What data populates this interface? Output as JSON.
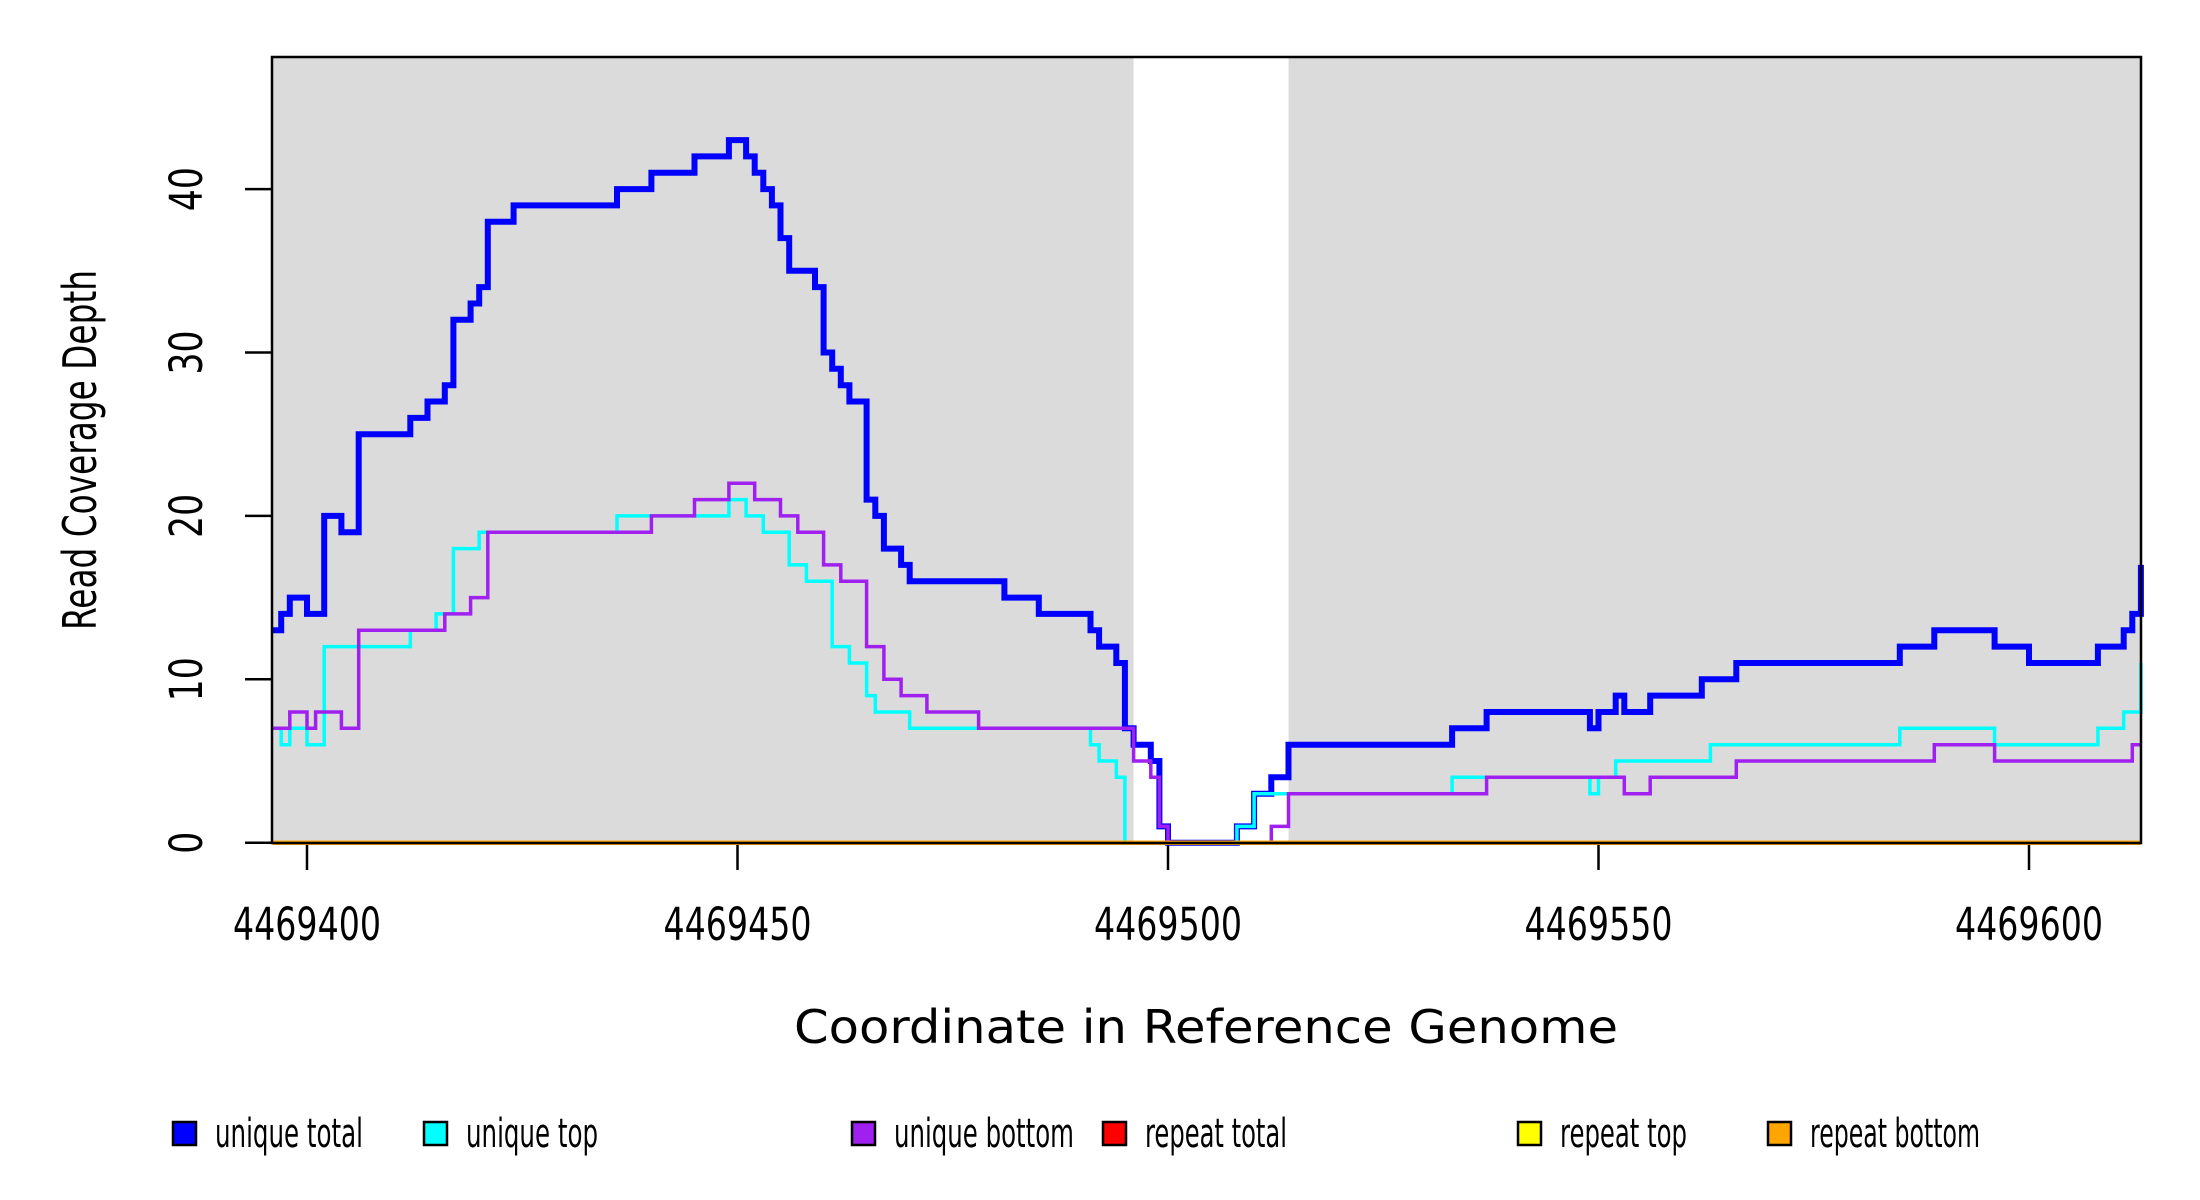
{
  "chart_data": {
    "type": "line",
    "subtype": "step-coverage",
    "title": "",
    "xlabel": "Coordinate in Reference Genome",
    "ylabel": "Read Coverage Depth",
    "xlim": [
      4469396,
      4469613
    ],
    "ylim": [
      0,
      48
    ],
    "x_ticks": [
      4469400,
      4469450,
      4469500,
      4469550,
      4469600
    ],
    "y_ticks": [
      0,
      10,
      20,
      30,
      40
    ],
    "grid": false,
    "legend_position": "bottom-horizontal",
    "plot_background_color": "#ffffff",
    "shaded_background_color": "#dbdbdb",
    "shaded_regions": [
      [
        4469396,
        4469496
      ],
      [
        4469514,
        4469613
      ]
    ],
    "unshaded_gap_region": [
      4469496,
      4469514
    ],
    "axis_color": "#000000",
    "series": [
      {
        "name": "unique total",
        "color": "#0000ff",
        "line_width": 6,
        "points": [
          [
            4469396,
            13
          ],
          [
            4469397,
            14
          ],
          [
            4469398,
            15
          ],
          [
            4469400,
            14
          ],
          [
            4469402,
            20
          ],
          [
            4469404,
            19
          ],
          [
            4469406,
            25
          ],
          [
            4469412,
            26
          ],
          [
            4469414,
            27
          ],
          [
            4469416,
            28
          ],
          [
            4469417,
            32
          ],
          [
            4469419,
            33
          ],
          [
            4469420,
            34
          ],
          [
            4469421,
            38
          ],
          [
            4469424,
            39
          ],
          [
            4469436,
            40
          ],
          [
            4469440,
            41
          ],
          [
            4469445,
            42
          ],
          [
            4469449,
            43
          ],
          [
            4469451,
            42
          ],
          [
            4469452,
            41
          ],
          [
            4469453,
            40
          ],
          [
            4469454,
            39
          ],
          [
            4469455,
            37
          ],
          [
            4469456,
            35
          ],
          [
            4469459,
            34
          ],
          [
            4469460,
            30
          ],
          [
            4469461,
            29
          ],
          [
            4469462,
            28
          ],
          [
            4469463,
            27
          ],
          [
            4469465,
            21
          ],
          [
            4469466,
            20
          ],
          [
            4469467,
            18
          ],
          [
            4469469,
            17
          ],
          [
            4469470,
            16
          ],
          [
            4469481,
            15
          ],
          [
            4469485,
            14
          ],
          [
            4469491,
            13
          ],
          [
            4469492,
            12
          ],
          [
            4469494,
            11
          ],
          [
            4469495,
            7
          ],
          [
            4469496,
            6
          ],
          [
            4469498,
            5
          ],
          [
            4469499,
            1
          ],
          [
            4469500,
            0
          ],
          [
            4469508,
            1
          ],
          [
            4469510,
            3
          ],
          [
            4469512,
            4
          ],
          [
            4469514,
            6
          ],
          [
            4469533,
            7
          ],
          [
            4469537,
            8
          ],
          [
            4469549,
            7
          ],
          [
            4469550,
            8
          ],
          [
            4469552,
            9
          ],
          [
            4469553,
            8
          ],
          [
            4469556,
            9
          ],
          [
            4469562,
            10
          ],
          [
            4469566,
            11
          ],
          [
            4469585,
            12
          ],
          [
            4469589,
            13
          ],
          [
            4469596,
            12
          ],
          [
            4469600,
            11
          ],
          [
            4469608,
            12
          ],
          [
            4469611,
            13
          ],
          [
            4469612,
            14
          ],
          [
            4469613,
            17
          ]
        ]
      },
      {
        "name": "unique top",
        "color": "#00ffff",
        "line_width": 3.5,
        "points": [
          [
            4469396,
            7
          ],
          [
            4469397,
            6
          ],
          [
            4469398,
            7
          ],
          [
            4469400,
            6
          ],
          [
            4469402,
            12
          ],
          [
            4469412,
            13
          ],
          [
            4469415,
            14
          ],
          [
            4469417,
            18
          ],
          [
            4469420,
            19
          ],
          [
            4469436,
            20
          ],
          [
            4469449,
            21
          ],
          [
            4469451,
            20
          ],
          [
            4469453,
            19
          ],
          [
            4469456,
            17
          ],
          [
            4469458,
            16
          ],
          [
            4469461,
            12
          ],
          [
            4469463,
            11
          ],
          [
            4469465,
            9
          ],
          [
            4469466,
            8
          ],
          [
            4469470,
            7
          ],
          [
            4469491,
            6
          ],
          [
            4469492,
            5
          ],
          [
            4469494,
            4
          ],
          [
            4469495,
            0
          ],
          [
            4469508,
            1
          ],
          [
            4469510,
            3
          ],
          [
            4469533,
            4
          ],
          [
            4469549,
            3
          ],
          [
            4469550,
            4
          ],
          [
            4469552,
            5
          ],
          [
            4469563,
            6
          ],
          [
            4469585,
            7
          ],
          [
            4469596,
            6
          ],
          [
            4469608,
            7
          ],
          [
            4469611,
            8
          ],
          [
            4469613,
            11
          ]
        ]
      },
      {
        "name": "unique bottom",
        "color": "#a020f0",
        "line_width": 3.5,
        "points": [
          [
            4469396,
            7
          ],
          [
            4469398,
            8
          ],
          [
            4469400,
            7
          ],
          [
            4469401,
            8
          ],
          [
            4469404,
            7
          ],
          [
            4469406,
            13
          ],
          [
            4469416,
            14
          ],
          [
            4469419,
            15
          ],
          [
            4469421,
            19
          ],
          [
            4469440,
            20
          ],
          [
            4469445,
            21
          ],
          [
            4469449,
            22
          ],
          [
            4469452,
            21
          ],
          [
            4469455,
            20
          ],
          [
            4469457,
            19
          ],
          [
            4469460,
            17
          ],
          [
            4469462,
            16
          ],
          [
            4469465,
            12
          ],
          [
            4469467,
            10
          ],
          [
            4469469,
            9
          ],
          [
            4469472,
            8
          ],
          [
            4469478,
            7
          ],
          [
            4469496,
            5
          ],
          [
            4469498,
            4
          ],
          [
            4469499,
            1
          ],
          [
            4469500,
            0
          ],
          [
            4469512,
            1
          ],
          [
            4469514,
            3
          ],
          [
            4469537,
            4
          ],
          [
            4469553,
            3
          ],
          [
            4469556,
            4
          ],
          [
            4469566,
            5
          ],
          [
            4469589,
            6
          ],
          [
            4469596,
            5
          ],
          [
            4469612,
            6
          ],
          [
            4469613,
            6
          ]
        ]
      },
      {
        "name": "repeat total",
        "color": "#ff0000",
        "line_width": 4.5,
        "points": [
          [
            4469396,
            0
          ],
          [
            4469613,
            0
          ]
        ]
      },
      {
        "name": "repeat top",
        "color": "#ffff00",
        "line_width": 4.5,
        "points": [
          [
            4469396,
            0
          ],
          [
            4469613,
            0
          ]
        ]
      },
      {
        "name": "repeat bottom",
        "color": "#ffa500",
        "line_width": 4.5,
        "points": [
          [
            4469396,
            0
          ],
          [
            4469613,
            0
          ]
        ]
      }
    ],
    "legend": [
      {
        "label": "unique total",
        "color": "#0000ff"
      },
      {
        "label": "unique top",
        "color": "#00ffff"
      },
      {
        "label": "unique bottom",
        "color": "#a020f0"
      },
      {
        "label": "repeat total",
        "color": "#ff0000"
      },
      {
        "label": "repeat top",
        "color": "#ffff00"
      },
      {
        "label": "repeat bottom",
        "color": "#ffa500"
      }
    ]
  }
}
